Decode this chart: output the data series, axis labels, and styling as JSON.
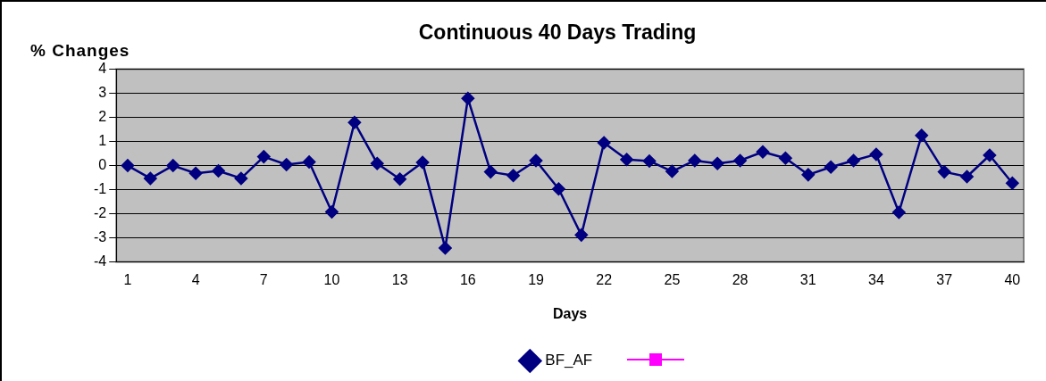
{
  "chart_data": {
    "type": "line",
    "title": "Continuous 40 Days Trading",
    "xlabel": "Days",
    "ylabel": "% Changes",
    "categories": [
      "1",
      null,
      null,
      "4",
      null,
      null,
      "7",
      null,
      null,
      "10",
      null,
      null,
      "13",
      null,
      null,
      "16",
      null,
      null,
      "19",
      null,
      null,
      "22",
      null,
      null,
      "25",
      null,
      null,
      "28",
      null,
      null,
      "31",
      null,
      null,
      "34",
      null,
      null,
      "37",
      null,
      null,
      "40"
    ],
    "series": [
      {
        "name": "BF_AF",
        "color": "#000080",
        "marker": "diamond",
        "values": [
          0,
          -0.53,
          0,
          -0.32,
          -0.22,
          -0.53,
          0.37,
          0.04,
          0.15,
          -1.92,
          1.79,
          0.09,
          -0.56,
          0.13,
          -3.42,
          2.79,
          -0.26,
          -0.41,
          0.21,
          -0.97,
          -2.88,
          0.95,
          0.25,
          0.19,
          -0.24,
          0.21,
          0.09,
          0.21,
          0.57,
          0.31,
          -0.38,
          -0.06,
          0.21,
          0.47,
          -1.94,
          1.25,
          -0.26,
          -0.46,
          0.43,
          -0.73
        ]
      }
    ],
    "ylim": [
      -4,
      4
    ],
    "yticks": [
      -4,
      -3,
      -2,
      -1,
      0,
      1,
      2,
      3,
      4
    ],
    "grid": "y",
    "legend": "bottom",
    "line_style": "solid"
  }
}
